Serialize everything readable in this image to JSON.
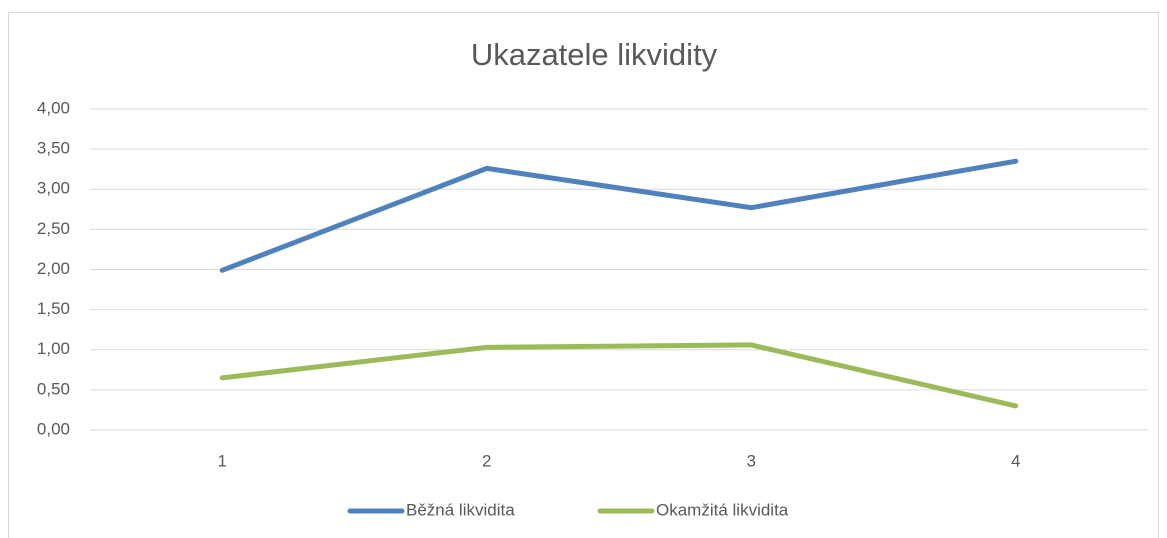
{
  "chart_data": {
    "type": "line",
    "title": "Ukazatele likvidity",
    "categories": [
      "1",
      "2",
      "3",
      "4"
    ],
    "series": [
      {
        "name": "Běžná likvidita",
        "color": "#4f81bd",
        "values": [
          1.99,
          3.26,
          2.77,
          3.35
        ]
      },
      {
        "name": "Okamžitá likvidita",
        "color": "#9bbb59",
        "values": [
          0.65,
          1.03,
          1.06,
          0.3
        ]
      }
    ],
    "ylim": [
      0,
      4
    ],
    "yticks": [
      {
        "value": 0,
        "label": "0,00"
      },
      {
        "value": 0.5,
        "label": "0,50"
      },
      {
        "value": 1,
        "label": "1,00"
      },
      {
        "value": 1.5,
        "label": "1,50"
      },
      {
        "value": 2,
        "label": "2,00"
      },
      {
        "value": 2.5,
        "label": "2,50"
      },
      {
        "value": 3,
        "label": "3,00"
      },
      {
        "value": 3.5,
        "label": "3,50"
      },
      {
        "value": 4,
        "label": "4,00"
      }
    ],
    "grid": true,
    "legend": "bottom"
  }
}
